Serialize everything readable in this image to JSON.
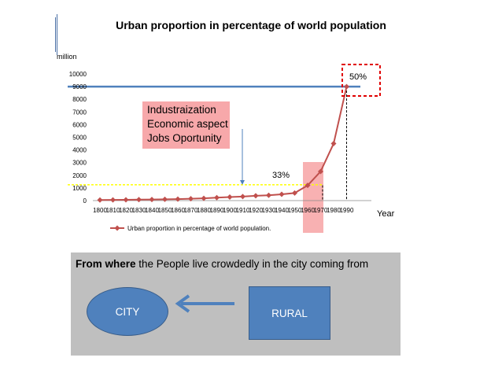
{
  "title": "Urban proportion in percentage of world population",
  "unit_label": "million",
  "callout": {
    "lines": [
      "Industraization",
      "Economic  aspect",
      "Jobs Oportunity"
    ]
  },
  "annotations": {
    "pct33": "33%",
    "pct50": "50%"
  },
  "panel": {
    "prefix": "From where",
    "text": " the People live crowdedly in the city coming from",
    "city_label": "CITY",
    "rural_label": "RURAL"
  },
  "colors": {
    "series": "#c0504d",
    "blue_line": "#4f81bd",
    "yellow_line": "#ffff00",
    "highlight": "#f7a8aa",
    "box_fill": "#4f81bd",
    "panel_bg": "#bfbfbf"
  },
  "chart_data": {
    "type": "line",
    "title": "Urban proportion in percentage of world population",
    "ylabel": "million",
    "xlabel": "Year",
    "ylim": [
      0,
      10000
    ],
    "yticks": [
      0,
      1000,
      2000,
      3000,
      4000,
      5000,
      6000,
      7000,
      8000,
      9000,
      10000
    ],
    "categories": [
      "1800",
      "1810",
      "1820",
      "1830",
      "1840",
      "1850",
      "1860",
      "1870",
      "1880",
      "1890",
      "1900",
      "1910",
      "1920",
      "1930",
      "1940",
      "1950",
      "1960",
      "1970",
      "1980",
      "1990"
    ],
    "series": [
      {
        "name": "Urban proportion in percentage of world population.",
        "values": [
          50,
          55,
          65,
          75,
          85,
          100,
          120,
          150,
          180,
          230,
          280,
          320,
          380,
          420,
          500,
          600,
          1200,
          2300,
          4500,
          9000
        ]
      }
    ],
    "reference_lines": [
      {
        "value": 9000,
        "color": "#4f81bd"
      },
      {
        "value": 1250,
        "color": "#ffff00"
      }
    ],
    "legend": "bottom-left",
    "grid": false
  }
}
